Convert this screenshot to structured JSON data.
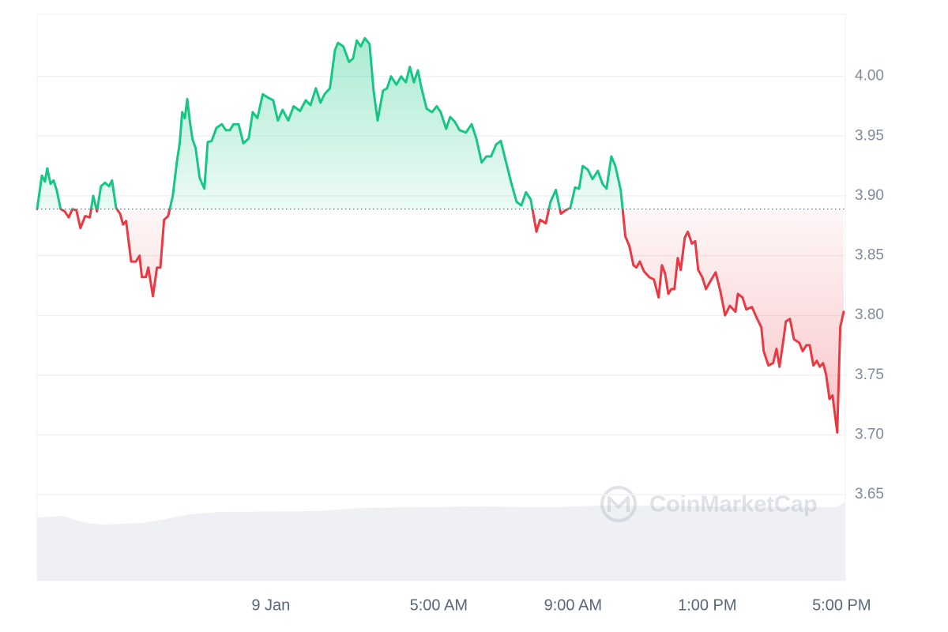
{
  "chart_data": {
    "type": "line",
    "watermark": "CoinMarketCap",
    "baseline": 3.889,
    "up_color": "#16c784",
    "down_color": "#ea3943",
    "grid": true,
    "xlim": [
      -6.96,
      17.11
    ],
    "ylim": [
      3.578,
      4.052
    ],
    "xticks": [
      {
        "value": 0,
        "label": "9 Jan"
      },
      {
        "value": 5,
        "label": "5:00 AM"
      },
      {
        "value": 9,
        "label": "9:00 AM"
      },
      {
        "value": 13,
        "label": "1:00 PM"
      },
      {
        "value": 17,
        "label": "5:00 PM"
      }
    ],
    "yticks": [
      {
        "value": 3.65,
        "label": "3.65"
      },
      {
        "value": 3.7,
        "label": "3.70"
      },
      {
        "value": 3.75,
        "label": "3.75"
      },
      {
        "value": 3.8,
        "label": "3.80"
      },
      {
        "value": 3.85,
        "label": "3.85"
      },
      {
        "value": 3.9,
        "label": "3.90"
      },
      {
        "value": 3.95,
        "label": "3.95"
      },
      {
        "value": 4,
        "label": "4.00"
      }
    ],
    "x": [
      -6.96,
      -6.82,
      -6.73,
      -6.66,
      -6.56,
      -6.47,
      -6.38,
      -6.26,
      -6.14,
      -6.02,
      -5.91,
      -5.79,
      -5.67,
      -5.53,
      -5.39,
      -5.29,
      -5.18,
      -5.06,
      -4.94,
      -4.82,
      -4.73,
      -4.61,
      -4.49,
      -4.4,
      -4.31,
      -4.16,
      -4.02,
      -3.91,
      -3.84,
      -3.72,
      -3.65,
      -3.51,
      -3.39,
      -3.29,
      -3.18,
      -3.06,
      -2.92,
      -2.8,
      -2.71,
      -2.64,
      -2.56,
      -2.49,
      -2.4,
      -2.33,
      -2.24,
      -2.12,
      -1.98,
      -1.88,
      -1.76,
      -1.62,
      -1.46,
      -1.34,
      -1.22,
      -1.11,
      -0.96,
      -0.82,
      -0.66,
      -0.54,
      -0.4,
      -0.24,
      -0.07,
      0.07,
      0.21,
      0.35,
      0.52,
      0.68,
      0.87,
      1.04,
      1.18,
      1.34,
      1.48,
      1.6,
      1.76,
      1.91,
      2.0,
      2.16,
      2.33,
      2.45,
      2.56,
      2.68,
      2.8,
      2.94,
      3.06,
      3.18,
      3.34,
      3.46,
      3.58,
      3.74,
      3.88,
      4.02,
      4.14,
      4.26,
      4.38,
      4.49,
      4.64,
      4.8,
      4.94,
      5.06,
      5.22,
      5.34,
      5.48,
      5.62,
      5.81,
      5.98,
      6.12,
      6.28,
      6.42,
      6.56,
      6.71,
      6.85,
      6.99,
      7.15,
      7.32,
      7.46,
      7.6,
      7.74,
      7.91,
      8.02,
      8.19,
      8.33,
      8.49,
      8.64,
      8.78,
      8.92,
      9.06,
      9.18,
      9.29,
      9.44,
      9.58,
      9.74,
      9.88,
      10.0,
      10.14,
      10.26,
      10.42,
      10.56,
      10.68,
      10.8,
      10.89,
      10.99,
      11.11,
      11.27,
      11.41,
      11.55,
      11.65,
      11.74,
      11.84,
      11.93,
      12.02,
      12.12,
      12.21,
      12.33,
      12.42,
      12.54,
      12.64,
      12.73,
      12.85,
      12.96,
      13.08,
      13.25,
      13.39,
      13.53,
      13.67,
      13.84,
      13.91,
      14.05,
      14.16,
      14.33,
      14.47,
      14.61,
      14.68,
      14.82,
      14.96,
      15.06,
      15.15,
      15.27,
      15.34,
      15.46,
      15.58,
      15.74,
      15.84,
      15.95,
      16.05,
      16.16,
      16.26,
      16.35,
      16.45,
      16.54,
      16.64,
      16.73,
      16.87,
      16.96,
      17.06
    ],
    "values": [
      3.889,
      3.917,
      3.912,
      3.923,
      3.91,
      3.913,
      3.905,
      3.889,
      3.887,
      3.882,
      3.889,
      3.888,
      3.873,
      3.883,
      3.882,
      3.9,
      3.887,
      3.908,
      3.911,
      3.908,
      3.913,
      3.89,
      3.885,
      3.876,
      3.879,
      3.845,
      3.845,
      3.85,
      3.832,
      3.832,
      3.84,
      3.816,
      3.84,
      3.84,
      3.88,
      3.883,
      3.9,
      3.928,
      3.945,
      3.97,
      3.965,
      3.981,
      3.96,
      3.947,
      3.94,
      3.915,
      3.906,
      3.945,
      3.946,
      3.957,
      3.96,
      3.955,
      3.955,
      3.96,
      3.96,
      3.944,
      3.948,
      3.97,
      3.965,
      3.985,
      3.982,
      3.98,
      3.963,
      3.972,
      3.963,
      3.975,
      3.971,
      3.98,
      3.976,
      3.99,
      3.978,
      3.985,
      3.99,
      4.022,
      4.028,
      4.025,
      4.012,
      4.015,
      4.03,
      4.025,
      4.032,
      4.027,
      3.988,
      3.963,
      3.988,
      3.99,
      4.0,
      3.993,
      4.0,
      3.995,
      4.008,
      3.995,
      4.005,
      3.99,
      3.973,
      3.97,
      3.975,
      3.97,
      3.956,
      3.966,
      3.962,
      3.955,
      3.953,
      3.96,
      3.948,
      3.928,
      3.933,
      3.933,
      3.943,
      3.946,
      3.93,
      3.912,
      3.895,
      3.892,
      3.903,
      3.897,
      3.87,
      3.88,
      3.877,
      3.895,
      3.905,
      3.885,
      3.888,
      3.89,
      3.907,
      3.906,
      3.925,
      3.922,
      3.914,
      3.921,
      3.91,
      3.906,
      3.933,
      3.925,
      3.905,
      3.866,
      3.858,
      3.842,
      3.84,
      3.845,
      3.837,
      3.832,
      3.83,
      3.815,
      3.842,
      3.835,
      3.818,
      3.822,
      3.822,
      3.848,
      3.838,
      3.865,
      3.87,
      3.86,
      3.862,
      3.838,
      3.832,
      3.822,
      3.828,
      3.836,
      3.82,
      3.8,
      3.808,
      3.803,
      3.818,
      3.815,
      3.805,
      3.807,
      3.798,
      3.79,
      3.77,
      3.758,
      3.76,
      3.772,
      3.757,
      3.78,
      3.795,
      3.797,
      3.78,
      3.777,
      3.77,
      3.775,
      3.775,
      3.758,
      3.762,
      3.757,
      3.76,
      3.75,
      3.73,
      3.733,
      3.702,
      3.79,
      3.803
    ]
  }
}
